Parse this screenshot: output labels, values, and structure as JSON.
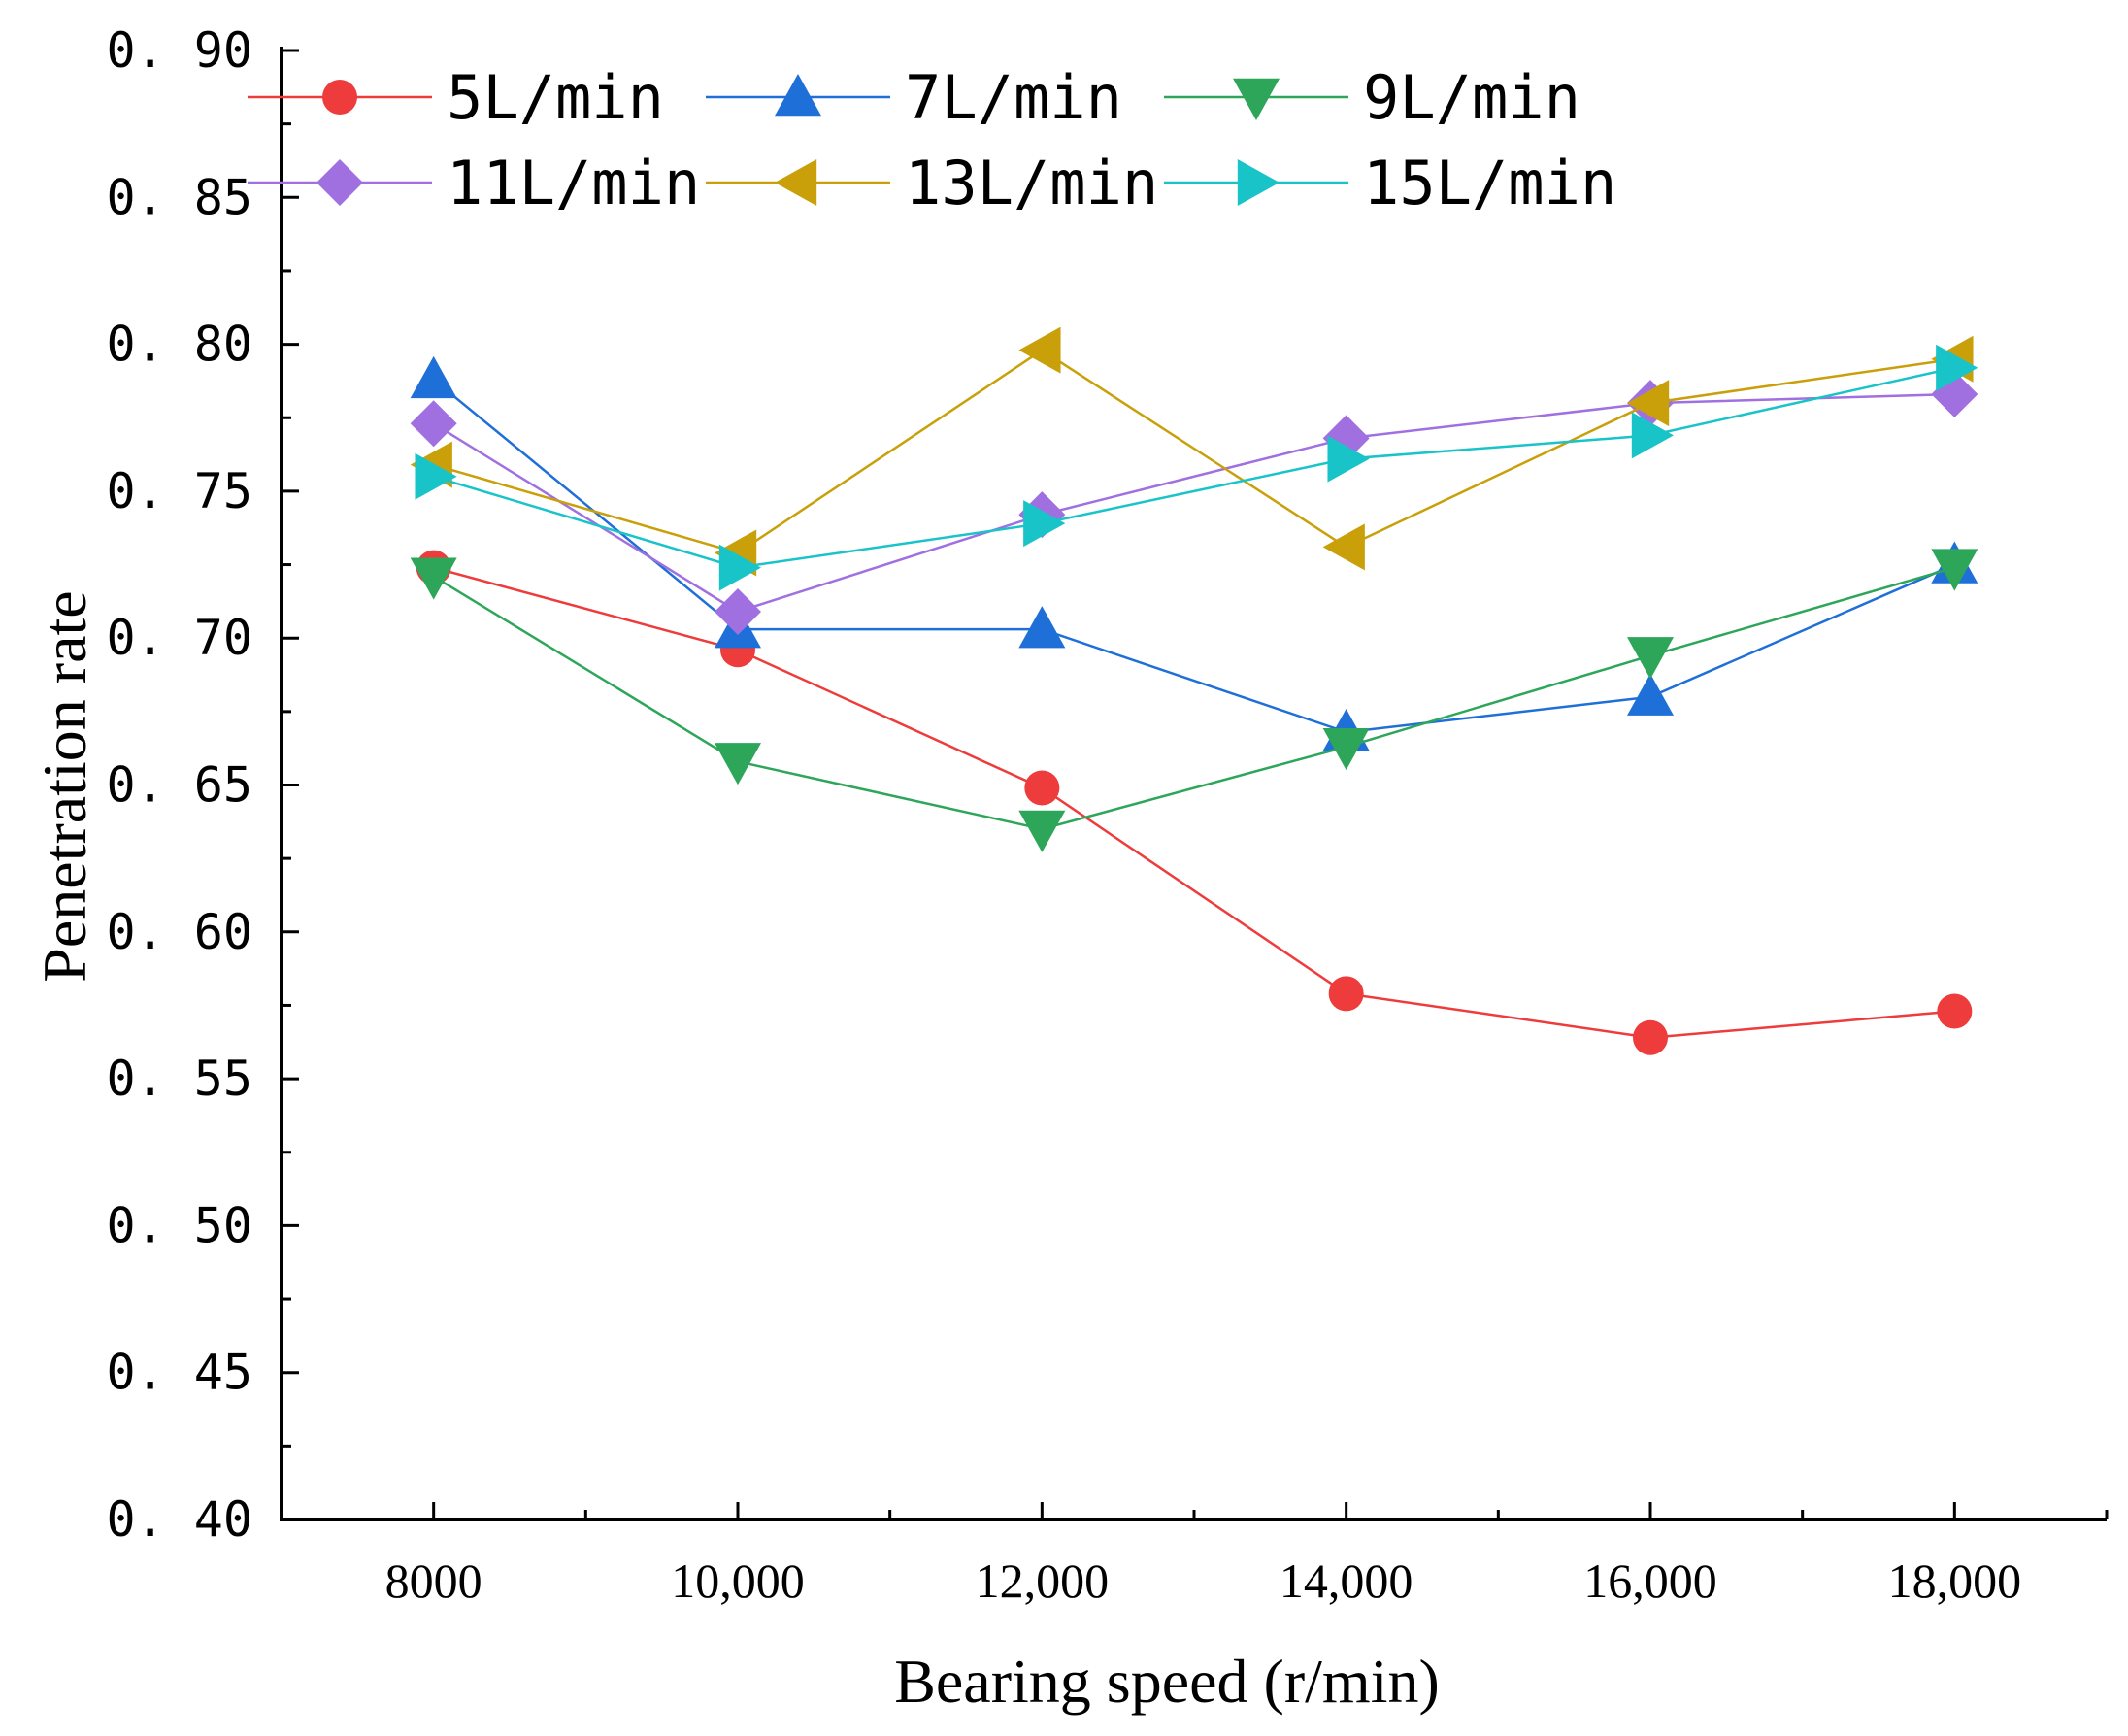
{
  "chart_data": {
    "type": "line",
    "title": "",
    "xlabel": "Bearing speed (r/min)",
    "ylabel": "Penetration rate",
    "categories": [
      "8000",
      "10,000",
      "12,000",
      "14,000",
      "16,000",
      "18,000"
    ],
    "x": [
      8000,
      10000,
      12000,
      14000,
      16000,
      18000
    ],
    "xlim": [
      7000,
      19000
    ],
    "ylim": [
      0.4,
      0.9
    ],
    "yticks": [
      "0.40",
      "0.45",
      "0.50",
      "0.55",
      "0.60",
      "0.65",
      "0.70",
      "0.75",
      "0.80",
      "0.85",
      "0.90"
    ],
    "grid": false,
    "legend": "top-left",
    "series": [
      {
        "name": "5L/min",
        "color": "#ee3b3b",
        "marker": "circle",
        "values": [
          0.724,
          0.696,
          0.649,
          0.579,
          0.564,
          0.573
        ]
      },
      {
        "name": "7L/min",
        "color": "#1f6fd9",
        "marker": "triangle-up",
        "values": [
          0.788,
          0.703,
          0.703,
          0.668,
          0.68,
          0.725
        ]
      },
      {
        "name": "9L/min",
        "color": "#2ea65a",
        "marker": "triangle-down",
        "values": [
          0.721,
          0.658,
          0.635,
          0.663,
          0.694,
          0.724
        ]
      },
      {
        "name": "11L/min",
        "color": "#a070e0",
        "marker": "diamond",
        "values": [
          0.773,
          0.709,
          0.742,
          0.768,
          0.78,
          0.783
        ]
      },
      {
        "name": "13L/min",
        "color": "#c9a00a",
        "marker": "triangle-left",
        "values": [
          0.759,
          0.729,
          0.798,
          0.731,
          0.78,
          0.795
        ]
      },
      {
        "name": "15L/min",
        "color": "#19c4c9",
        "marker": "triangle-right",
        "values": [
          0.755,
          0.724,
          0.739,
          0.761,
          0.769,
          0.792
        ]
      }
    ]
  }
}
